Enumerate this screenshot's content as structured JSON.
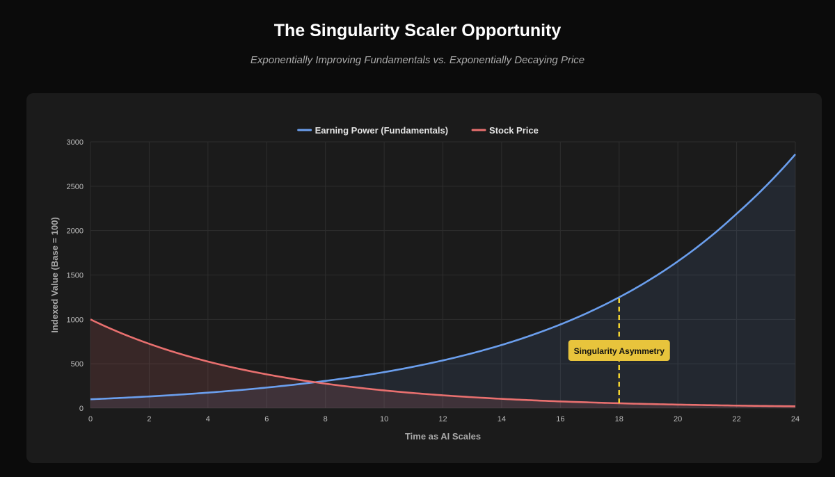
{
  "header": {
    "title": "The Singularity Scaler Opportunity",
    "subtitle": "Exponentially Improving Fundamentals vs. Exponentially Decaying Price"
  },
  "chart_data": {
    "type": "line",
    "title": "",
    "xlabel": "Time as AI Scales",
    "ylabel": "Indexed Value (Base = 100)",
    "xlim": [
      0,
      24
    ],
    "ylim": [
      0,
      3000
    ],
    "x_ticks": [
      0,
      2,
      4,
      6,
      8,
      10,
      12,
      14,
      16,
      18,
      20,
      22,
      24
    ],
    "y_ticks": [
      0,
      500,
      1000,
      1500,
      2000,
      2500,
      3000
    ],
    "grid": true,
    "legend_position": "top-center",
    "x": [
      0,
      2,
      4,
      6,
      8,
      10,
      12,
      14,
      16,
      18,
      20,
      22,
      24
    ],
    "series": [
      {
        "name": "Earning Power (Fundamentals)",
        "color": "#6b9fee",
        "fill": "rgba(107,159,238,0.10)",
        "values": [
          100,
          132,
          175,
          232,
          307,
          406,
          538,
          712,
          943,
          1249,
          1654,
          2190,
          2860
        ]
      },
      {
        "name": "Stock Price",
        "color": "#e9706f",
        "fill": "rgba(233,112,111,0.14)",
        "values": [
          1000,
          725,
          525,
          381,
          276,
          200,
          145,
          105,
          76,
          55,
          40,
          29,
          21
        ]
      }
    ],
    "annotations": [
      {
        "label": "Singularity Asymmetry",
        "x": 18,
        "line_from": 55,
        "line_to": 1249,
        "label_y": 650,
        "line_color": "#f1d230",
        "box_color": "#e8c43c"
      }
    ]
  }
}
